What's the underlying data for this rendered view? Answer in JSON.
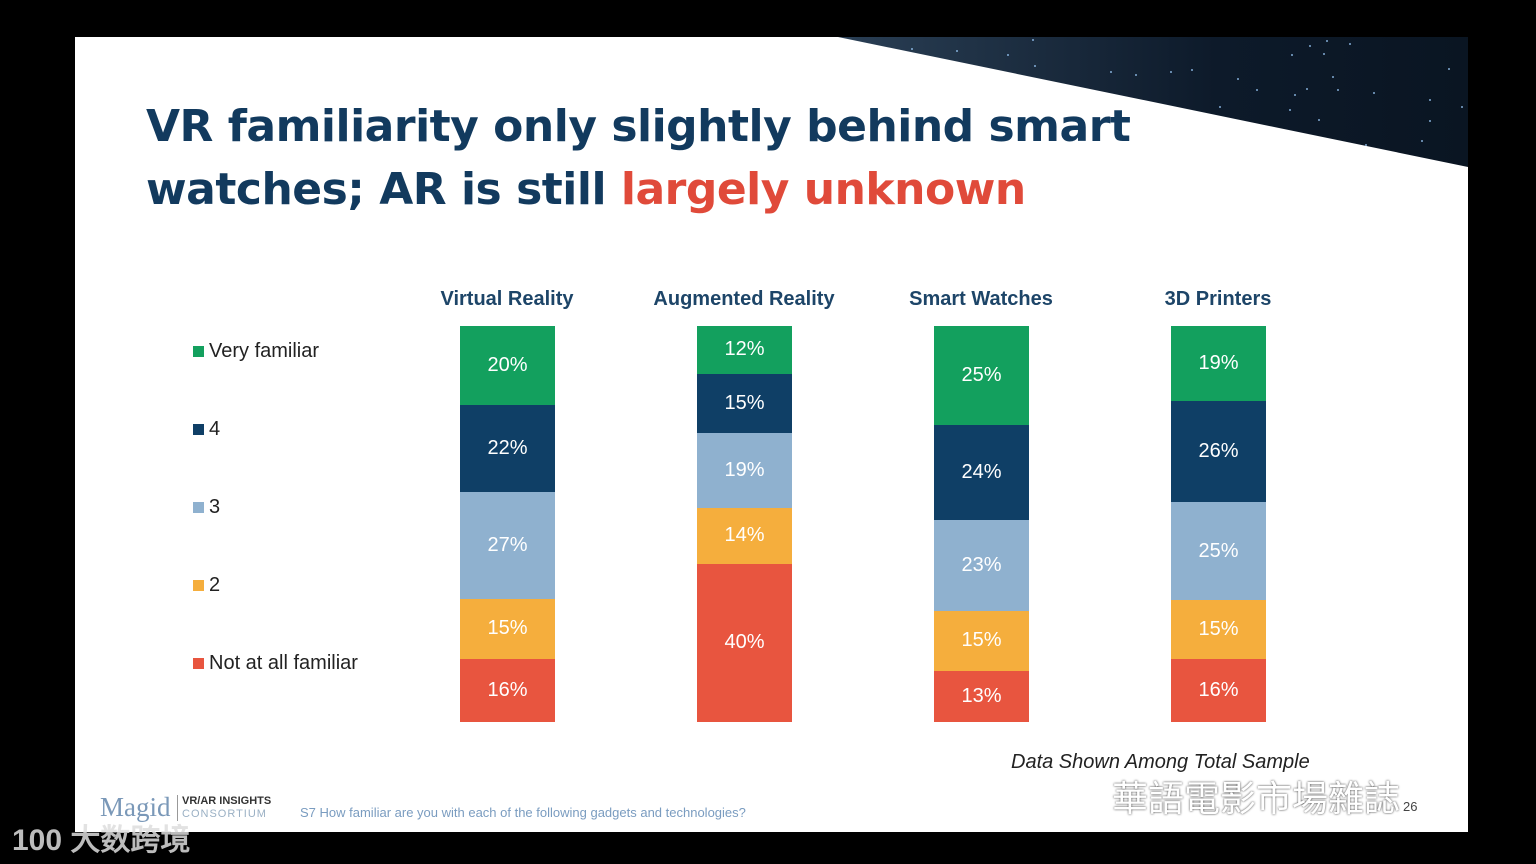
{
  "title": {
    "part1": "VR familiarity only slightly behind smart",
    "part2": "watches; AR is still ",
    "highlight": "largely unknown"
  },
  "chart_data": {
    "type": "bar",
    "stacked": true,
    "categories": [
      "Virtual Reality",
      "Augmented Reality",
      "Smart Watches",
      "3D Printers"
    ],
    "series": [
      {
        "name": "Very familiar",
        "color": "#13a05e",
        "values": [
          20,
          12,
          25,
          19
        ]
      },
      {
        "name": "4",
        "color": "#0f3f66",
        "values": [
          22,
          15,
          24,
          26
        ]
      },
      {
        "name": "3",
        "color": "#8fb1cf",
        "values": [
          27,
          19,
          23,
          25
        ]
      },
      {
        "name": "2",
        "color": "#f5ae3d",
        "values": [
          15,
          14,
          15,
          15
        ]
      },
      {
        "name": "Not at all familiar",
        "color": "#e8553f",
        "values": [
          16,
          40,
          13,
          16
        ]
      }
    ],
    "value_suffix": "%",
    "legend_placement": "left",
    "note": "Data Shown Among Total Sample"
  },
  "footer": {
    "logo": "Magid",
    "logo_sub1": "VR/AR INSIGHTS",
    "logo_sub2": "CONSORTIUM",
    "question": "S7 How familiar are you with each of the following gadgets and technologies?",
    "page": "26"
  },
  "watermarks": {
    "left": "100 大数跨境",
    "right": "華語電影市場雜誌"
  }
}
